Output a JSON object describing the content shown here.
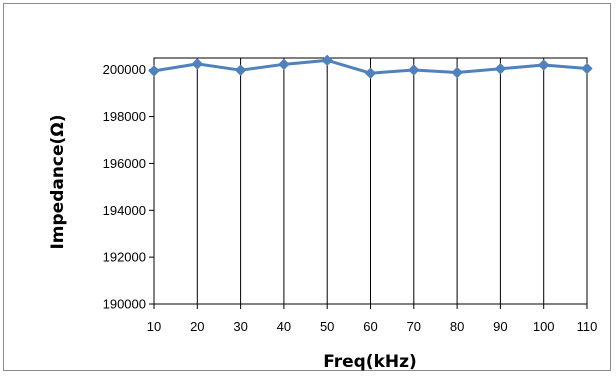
{
  "chart_data": {
    "type": "line",
    "title": "",
    "xlabel": "Freq(kHz)",
    "ylabel": "Impedance(Ω)",
    "categories": [
      "10",
      "20",
      "30",
      "40",
      "50",
      "60",
      "70",
      "80",
      "90",
      "100",
      "110"
    ],
    "series": [
      {
        "values": [
          199950,
          200250,
          199980,
          200230,
          200400,
          199850,
          199990,
          199880,
          200040,
          200200,
          200050
        ]
      }
    ],
    "ylim": [
      190000,
      200500
    ],
    "yticks": [
      190000,
      192000,
      194000,
      196000,
      198000,
      200000
    ],
    "grid": {
      "vertical": true,
      "horizontal": false
    },
    "legend": "none",
    "colors": {
      "series": "#4f81bd",
      "grid": "#000000",
      "frame": "#8a8a8a"
    }
  }
}
